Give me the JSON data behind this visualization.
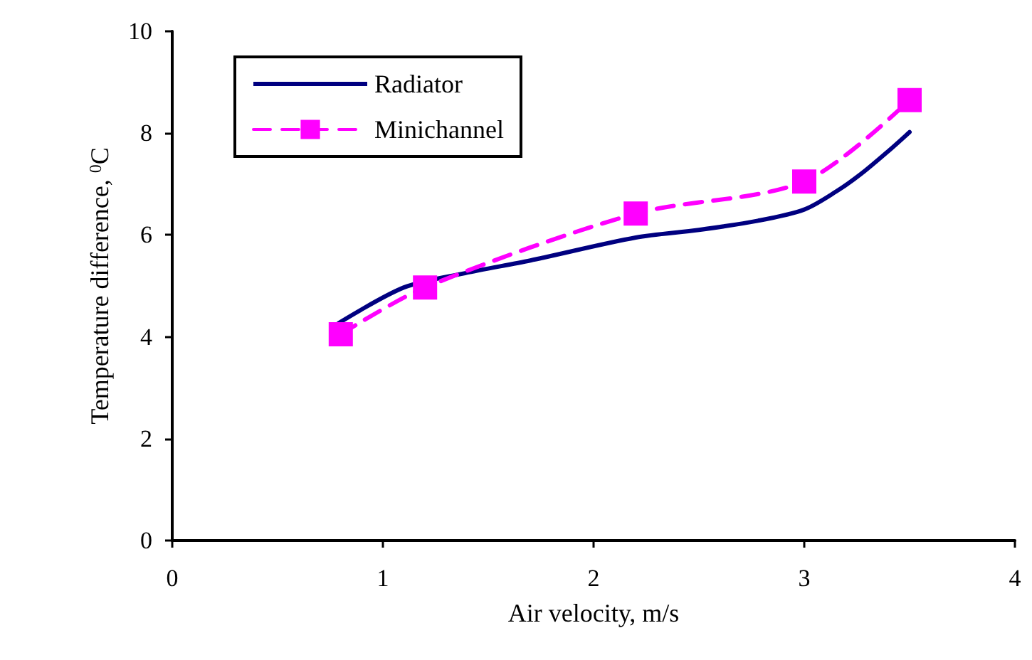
{
  "chart_data": {
    "type": "line",
    "xlabel": "Air velocity, m/s",
    "ylabel": "Temperature difference, $^{0}$C",
    "xlim": [
      0,
      4
    ],
    "xticks": [
      0,
      1,
      2,
      3,
      4
    ],
    "ylim": [
      0,
      10
    ],
    "yticks": [
      0,
      2,
      4,
      6,
      8,
      10
    ],
    "grid": false,
    "legend": "top left",
    "series": [
      {
        "name": "Radiator",
        "color": "#000080",
        "marker": "none",
        "line_style": "solid",
        "x": [
          0.79,
          1.1,
          1.39,
          1.7,
          2.2,
          2.5,
          2.78,
          3.0,
          3.15,
          3.27,
          3.4,
          3.5
        ],
        "values": [
          4.27,
          4.97,
          5.25,
          5.5,
          5.95,
          6.1,
          6.28,
          6.5,
          6.85,
          7.2,
          7.65,
          8.02
        ]
      },
      {
        "name": "Minichannel",
        "color": "#ff00ff",
        "marker": "square",
        "line_style": "dashed",
        "x": [
          0.8,
          1.2,
          2.2,
          3.0,
          3.5
        ],
        "values": [
          4.05,
          4.97,
          6.42,
          7.05,
          8.65
        ]
      }
    ]
  }
}
